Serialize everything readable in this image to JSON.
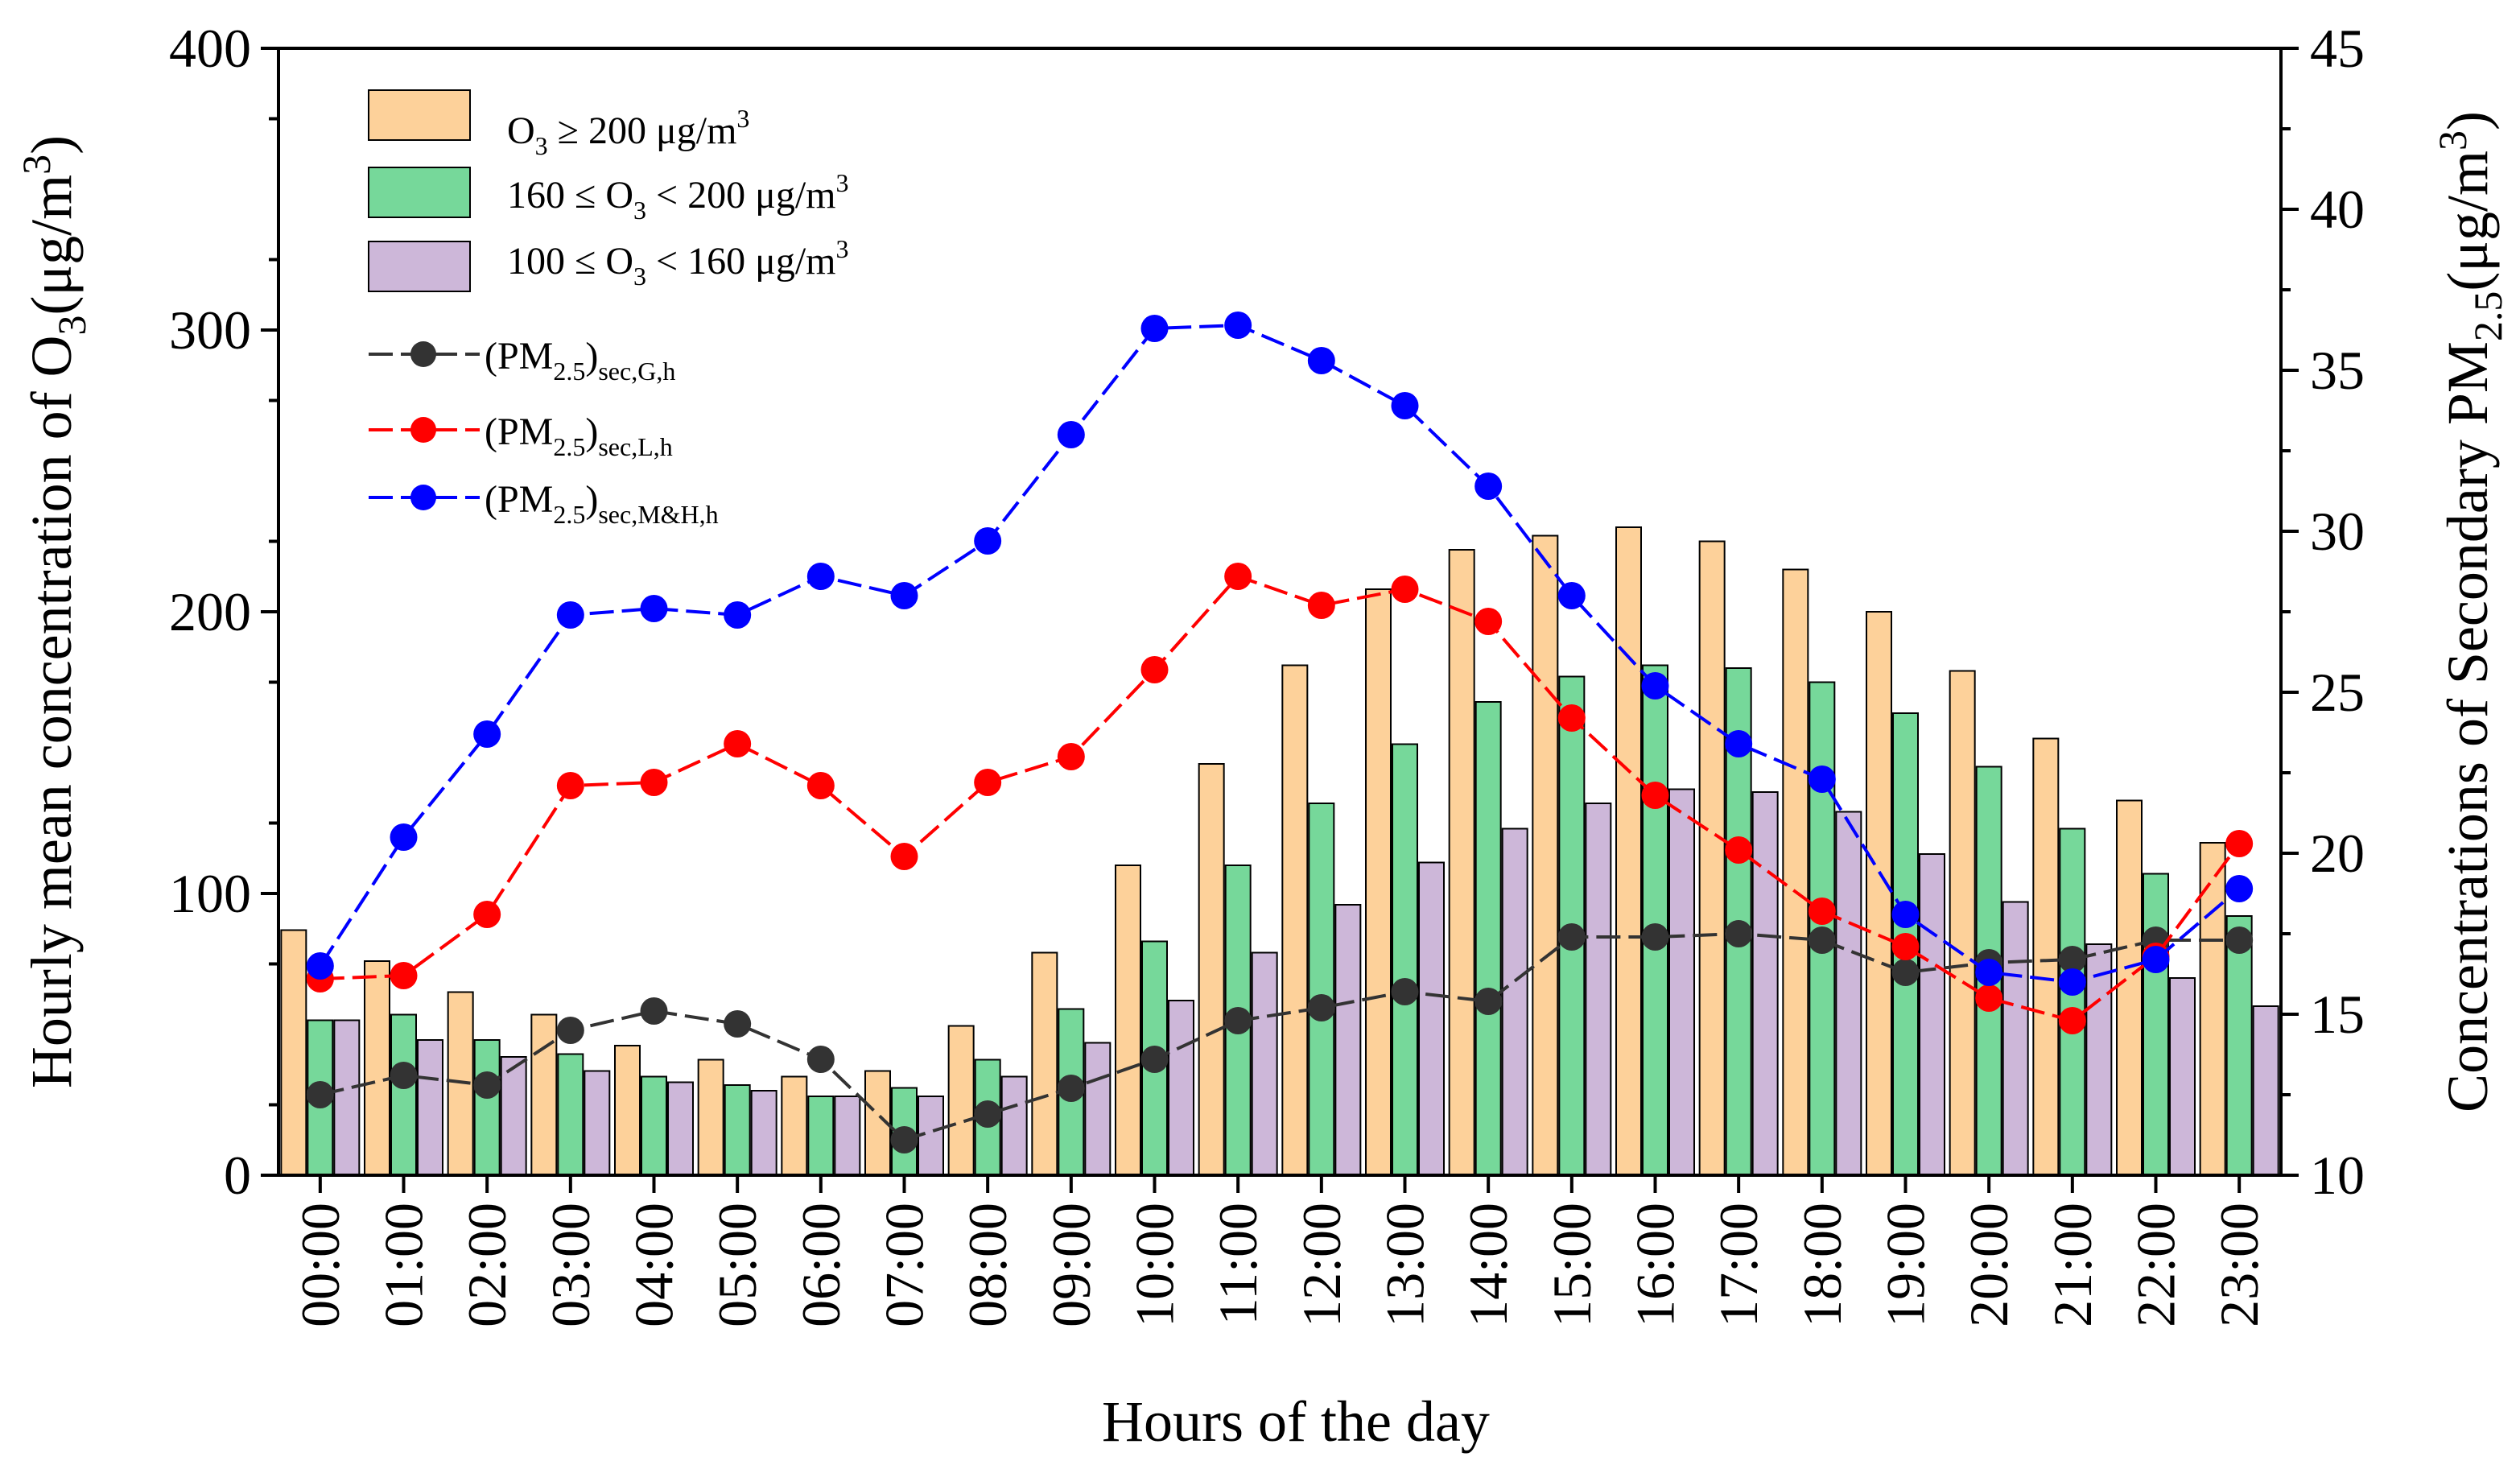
{
  "chart_data": {
    "type": "bar",
    "xlabel": "Hours of the day",
    "ylabel_left": {
      "prefix": "Hourly mean concentration of O",
      "sub": "3",
      "suffix": "(μg/m",
      "sup": "3",
      "end": ")"
    },
    "ylabel_right": {
      "prefix": "Concentrations of Secondary PM",
      "sub": "2.5",
      "suffix": "(μg/m",
      "sup": "3",
      "end": ")"
    },
    "ylim_left": [
      0,
      400
    ],
    "yticks_left": [
      0,
      100,
      200,
      300,
      400
    ],
    "ylim_right": [
      10,
      45
    ],
    "yticks_right": [
      10,
      15,
      20,
      25,
      30,
      35,
      40,
      45
    ],
    "categories": [
      "00:00",
      "01:00",
      "02:00",
      "03:00",
      "04:00",
      "05:00",
      "06:00",
      "07:00",
      "08:00",
      "09:00",
      "10:00",
      "11:00",
      "12:00",
      "13:00",
      "14:00",
      "15:00",
      "16:00",
      "17:00",
      "18:00",
      "19:00",
      "20:00",
      "21:00",
      "22:00",
      "23:00"
    ],
    "bar_series": [
      {
        "name": "O3 >= 200",
        "legend": {
          "a": "O",
          "sub": "3",
          "b": " ≥ 200  μg/m",
          "sup": "3"
        },
        "color": "#fdd19a",
        "values": [
          87,
          76,
          65,
          57,
          46,
          41,
          35,
          37,
          53,
          79,
          110,
          146,
          181,
          208,
          222,
          227,
          230,
          225,
          215,
          200,
          179,
          155,
          133,
          118
        ]
      },
      {
        "name": "160 <= O3 < 200",
        "legend": {
          "a": "160 ≤ O",
          "sub": "3",
          "b": "  <  200  μg/m",
          "sup": "3"
        },
        "color": "#76d89a",
        "values": [
          55,
          57,
          48,
          43,
          35,
          32,
          28,
          31,
          41,
          59,
          83,
          110,
          132,
          153,
          168,
          177,
          181,
          180,
          175,
          164,
          145,
          123,
          107,
          92
        ]
      },
      {
        "name": "100 <= O3 < 160",
        "legend": {
          "a": "100 ≤ O",
          "sub": "3",
          "b": "  <  160  μg/m",
          "sup": "3"
        },
        "color": "#cdb7d9",
        "values": [
          55,
          48,
          42,
          37,
          33,
          30,
          28,
          28,
          35,
          47,
          62,
          79,
          96,
          111,
          123,
          132,
          137,
          136,
          129,
          114,
          97,
          82,
          70,
          60
        ]
      }
    ],
    "line_series": [
      {
        "name": "(PM2.5)sec,G,h",
        "legend": {
          "a": "(PM",
          "sub": "2.5",
          "b": ")",
          "sub2": "sec,G,h"
        },
        "color": "#333333",
        "values": [
          12.5,
          13.1,
          12.8,
          14.5,
          15.1,
          14.7,
          13.6,
          11.1,
          11.9,
          12.7,
          13.6,
          14.8,
          15.2,
          15.7,
          15.4,
          17.4,
          17.4,
          17.5,
          17.3,
          16.3,
          16.6,
          16.7,
          17.3,
          17.3
        ]
      },
      {
        "name": "(PM2.5)sec,L,h",
        "legend": {
          "a": "(PM",
          "sub": "2.5",
          "b": ")",
          "sub2": "sec,L,h"
        },
        "color": "#ff0000",
        "values": [
          16.1,
          16.2,
          18.1,
          22.1,
          22.2,
          23.4,
          22.1,
          19.9,
          22.2,
          23.0,
          25.7,
          28.6,
          27.7,
          28.2,
          27.2,
          24.2,
          21.8,
          20.1,
          18.2,
          17.1,
          15.5,
          14.8,
          16.8,
          20.3
        ]
      },
      {
        "name": "(PM2.5)sec,M&H,h",
        "legend": {
          "a": "(PM",
          "sub": "2.5",
          "b": ")",
          "sub2": "sec,M&H,h"
        },
        "color": "#0000ff",
        "values": [
          16.5,
          20.5,
          23.7,
          27.4,
          27.6,
          27.4,
          28.6,
          28.0,
          29.7,
          33.0,
          36.3,
          36.4,
          35.3,
          33.9,
          31.4,
          28.0,
          25.2,
          23.4,
          22.3,
          18.1,
          16.3,
          16.0,
          16.7,
          18.9
        ]
      }
    ]
  }
}
